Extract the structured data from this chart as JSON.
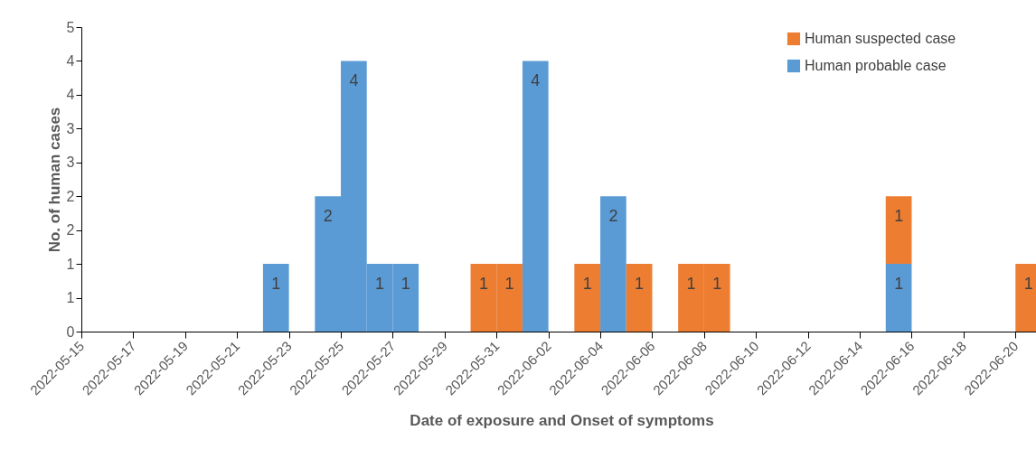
{
  "chart_data": {
    "type": "bar",
    "xlabel": "Date of exposure and Onset of symptoms",
    "ylabel": "No. of human cases",
    "x": [
      "2022-05-22T12:00",
      "2022-05-24T12:00",
      "2022-05-25T12:00",
      "2022-05-26T12:00",
      "2022-05-27T12:00",
      "2022-05-30T12:00",
      "2022-05-31T12:00",
      "2022-06-01T12:00",
      "2022-06-03T12:00",
      "2022-06-04T12:00",
      "2022-06-05T12:00",
      "2022-06-07T12:00",
      "2022-06-08T12:00",
      "2022-06-15T12:00",
      "2022-06-20T12:00"
    ],
    "series": [
      {
        "name": "Human probable case",
        "color": "#5b9bd5",
        "values": [
          1,
          2,
          4,
          1,
          1,
          null,
          null,
          4,
          null,
          2,
          null,
          null,
          null,
          1,
          null
        ]
      },
      {
        "name": "Human suspected case",
        "color": "#ed7d31",
        "values": [
          null,
          null,
          null,
          null,
          null,
          1,
          1,
          null,
          1,
          null,
          1,
          1,
          1,
          1,
          1
        ]
      }
    ],
    "stacked": true,
    "data_labels": true,
    "legend": "top right",
    "xlim": [
      "2022-05-15",
      "2022-06-21"
    ],
    "xticks": [
      "2022-05-15",
      "2022-05-17",
      "2022-05-19",
      "2022-05-21",
      "2022-05-23",
      "2022-05-25",
      "2022-05-27",
      "2022-05-29",
      "2022-05-31",
      "2022-06-02",
      "2022-06-04",
      "2022-06-06",
      "2022-06-08",
      "2022-06-10",
      "2022-06-12",
      "2022-06-14",
      "2022-06-16",
      "2022-06-18",
      "2022-06-20"
    ],
    "ylim": [
      0,
      4.5
    ],
    "yticks": [
      0,
      {
        "value": 0.5,
        "label": "1"
      },
      1,
      {
        "value": 1.5,
        "label": "2"
      },
      2,
      {
        "value": 2.5,
        "label": "3"
      },
      3,
      {
        "value": 3.5,
        "label": "4"
      },
      4,
      {
        "value": 4.5,
        "label": "5"
      }
    ]
  }
}
